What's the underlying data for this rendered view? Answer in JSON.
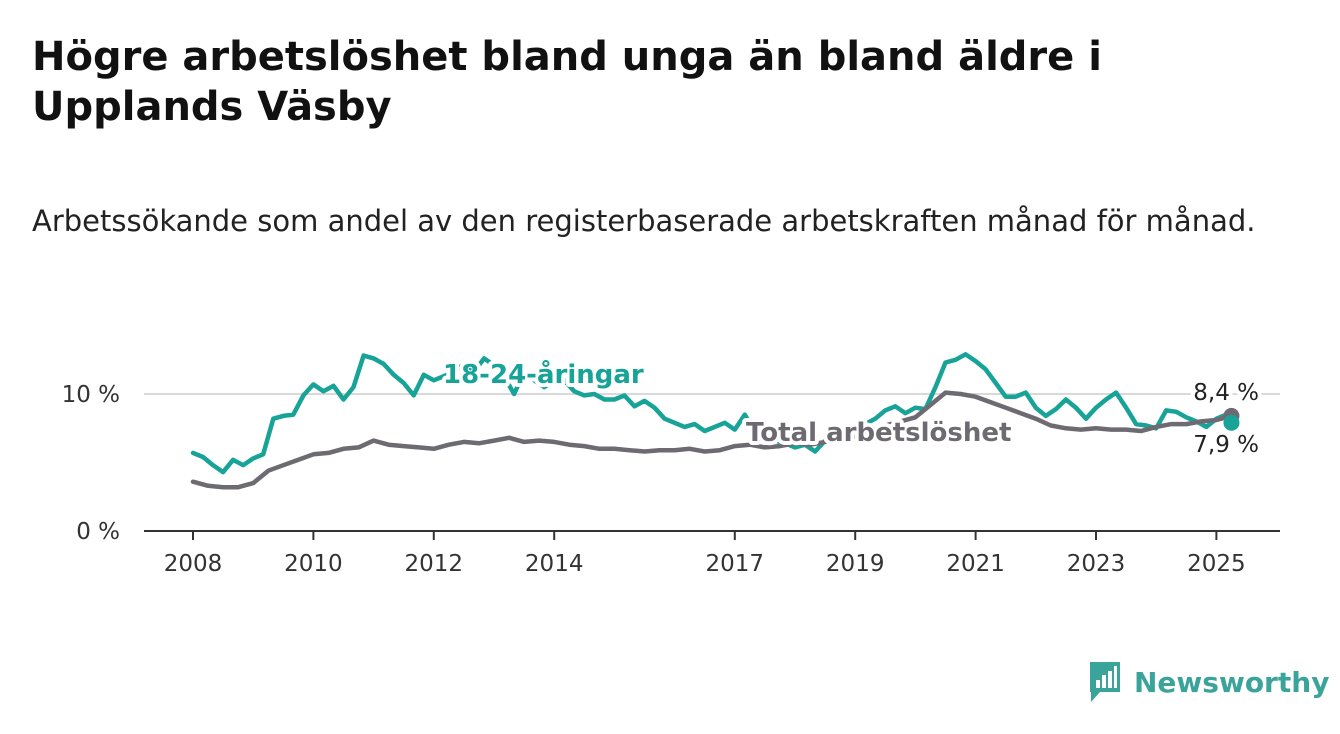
{
  "title": "Högre arbetslöshet bland unga än bland äldre i Upplands Väsby",
  "subtitle": "Arbetssökande som andel av den registerbaserade arbetskraften månad för månad.",
  "brand": {
    "name": "Newsworthy",
    "icon": "newsworthy-logo-icon"
  },
  "colors": {
    "youth": "#17a398",
    "total": "#6e6a72",
    "grid": "#d9d9d9",
    "axis": "#333333"
  },
  "chart_data": {
    "type": "line",
    "title": "Högre arbetslöshet bland unga än bland äldre i Upplands Väsby",
    "subtitle": "Arbetssökande som andel av den registerbaserade arbetskraften månad för månad.",
    "xlim": [
      "2008-01",
      "2025-06"
    ],
    "ylim": [
      0,
      13.5
    ],
    "x_ticks": [
      "2008",
      "2010",
      "2012",
      "2014",
      "2017",
      "2019",
      "2021",
      "2023",
      "2025"
    ],
    "y_ticks": [
      "0 %",
      "10 %"
    ],
    "y_tick_values": [
      0,
      10
    ],
    "grid": "horizontal",
    "series": [
      {
        "name": "18-24-åringar",
        "color": "#17a398",
        "end_label": "7,9 %",
        "points": [
          [
            "2008-01",
            5.7
          ],
          [
            "2008-03",
            5.4
          ],
          [
            "2008-05",
            4.8
          ],
          [
            "2008-07",
            4.3
          ],
          [
            "2008-09",
            5.2
          ],
          [
            "2008-11",
            4.8
          ],
          [
            "2009-01",
            5.3
          ],
          [
            "2009-03",
            5.6
          ],
          [
            "2009-05",
            8.2
          ],
          [
            "2009-07",
            8.4
          ],
          [
            "2009-09",
            8.5
          ],
          [
            "2009-11",
            9.9
          ],
          [
            "2010-01",
            10.7
          ],
          [
            "2010-03",
            10.2
          ],
          [
            "2010-05",
            10.6
          ],
          [
            "2010-07",
            9.6
          ],
          [
            "2010-09",
            10.5
          ],
          [
            "2010-11",
            12.8
          ],
          [
            "2011-01",
            12.6
          ],
          [
            "2011-03",
            12.2
          ],
          [
            "2011-05",
            11.4
          ],
          [
            "2011-07",
            10.8
          ],
          [
            "2011-09",
            9.9
          ],
          [
            "2011-11",
            11.4
          ],
          [
            "2012-01",
            11.0
          ],
          [
            "2012-03",
            11.3
          ],
          [
            "2012-05",
            11.6
          ],
          [
            "2012-07",
            12.2
          ],
          [
            "2012-09",
            11.6
          ],
          [
            "2012-11",
            12.6
          ],
          [
            "2013-01",
            12.1
          ],
          [
            "2013-03",
            11.3
          ],
          [
            "2013-05",
            10.0
          ],
          [
            "2013-07",
            11.6
          ],
          [
            "2013-09",
            11.0
          ],
          [
            "2013-11",
            10.5
          ],
          [
            "2014-01",
            11.0
          ],
          [
            "2014-03",
            11.0
          ],
          [
            "2014-05",
            10.2
          ],
          [
            "2014-07",
            9.9
          ],
          [
            "2014-09",
            10.0
          ],
          [
            "2014-11",
            9.6
          ],
          [
            "2015-01",
            9.6
          ],
          [
            "2015-03",
            9.9
          ],
          [
            "2015-05",
            9.1
          ],
          [
            "2015-07",
            9.5
          ],
          [
            "2015-09",
            9.0
          ],
          [
            "2015-11",
            8.2
          ],
          [
            "2016-01",
            7.9
          ],
          [
            "2016-03",
            7.6
          ],
          [
            "2016-05",
            7.8
          ],
          [
            "2016-07",
            7.3
          ],
          [
            "2016-09",
            7.6
          ],
          [
            "2016-11",
            7.9
          ],
          [
            "2017-01",
            7.4
          ],
          [
            "2017-03",
            8.5
          ],
          [
            "2017-05",
            7.2
          ],
          [
            "2017-07",
            6.6
          ],
          [
            "2017-09",
            6.6
          ],
          [
            "2017-11",
            6.4
          ],
          [
            "2018-01",
            6.1
          ],
          [
            "2018-03",
            6.3
          ],
          [
            "2018-05",
            5.8
          ],
          [
            "2018-07",
            6.6
          ],
          [
            "2018-09",
            6.9
          ],
          [
            "2018-11",
            7.1
          ],
          [
            "2019-01",
            7.3
          ],
          [
            "2019-03",
            7.8
          ],
          [
            "2019-05",
            8.2
          ],
          [
            "2019-07",
            8.8
          ],
          [
            "2019-09",
            9.1
          ],
          [
            "2019-11",
            8.6
          ],
          [
            "2020-01",
            9.0
          ],
          [
            "2020-03",
            8.9
          ],
          [
            "2020-05",
            10.5
          ],
          [
            "2020-07",
            12.3
          ],
          [
            "2020-09",
            12.5
          ],
          [
            "2020-11",
            12.9
          ],
          [
            "2021-01",
            12.4
          ],
          [
            "2021-03",
            11.8
          ],
          [
            "2021-05",
            10.8
          ],
          [
            "2021-07",
            9.8
          ],
          [
            "2021-09",
            9.8
          ],
          [
            "2021-11",
            10.1
          ],
          [
            "2022-01",
            9.0
          ],
          [
            "2022-03",
            8.4
          ],
          [
            "2022-05",
            8.9
          ],
          [
            "2022-07",
            9.6
          ],
          [
            "2022-09",
            9.0
          ],
          [
            "2022-11",
            8.2
          ],
          [
            "2023-01",
            9.0
          ],
          [
            "2023-03",
            9.6
          ],
          [
            "2023-05",
            10.1
          ],
          [
            "2023-07",
            9.0
          ],
          [
            "2023-09",
            7.8
          ],
          [
            "2023-11",
            7.7
          ],
          [
            "2024-01",
            7.5
          ],
          [
            "2024-03",
            8.8
          ],
          [
            "2024-05",
            8.7
          ],
          [
            "2024-07",
            8.3
          ],
          [
            "2024-09",
            8.0
          ],
          [
            "2024-11",
            7.6
          ],
          [
            "2025-01",
            8.2
          ],
          [
            "2025-03",
            8.5
          ],
          [
            "2025-04",
            7.9
          ]
        ]
      },
      {
        "name": "Total arbetslöshet",
        "color": "#6e6a72",
        "end_label": "8,4 %",
        "points": [
          [
            "2008-01",
            3.6
          ],
          [
            "2008-04",
            3.3
          ],
          [
            "2008-07",
            3.2
          ],
          [
            "2008-10",
            3.2
          ],
          [
            "2009-01",
            3.5
          ],
          [
            "2009-04",
            4.4
          ],
          [
            "2009-07",
            4.8
          ],
          [
            "2009-10",
            5.2
          ],
          [
            "2010-01",
            5.6
          ],
          [
            "2010-04",
            5.7
          ],
          [
            "2010-07",
            6.0
          ],
          [
            "2010-10",
            6.1
          ],
          [
            "2011-01",
            6.6
          ],
          [
            "2011-04",
            6.3
          ],
          [
            "2011-07",
            6.2
          ],
          [
            "2011-10",
            6.1
          ],
          [
            "2012-01",
            6.0
          ],
          [
            "2012-04",
            6.3
          ],
          [
            "2012-07",
            6.5
          ],
          [
            "2012-10",
            6.4
          ],
          [
            "2013-01",
            6.6
          ],
          [
            "2013-04",
            6.8
          ],
          [
            "2013-07",
            6.5
          ],
          [
            "2013-10",
            6.6
          ],
          [
            "2014-01",
            6.5
          ],
          [
            "2014-04",
            6.3
          ],
          [
            "2014-07",
            6.2
          ],
          [
            "2014-10",
            6.0
          ],
          [
            "2015-01",
            6.0
          ],
          [
            "2015-04",
            5.9
          ],
          [
            "2015-07",
            5.8
          ],
          [
            "2015-10",
            5.9
          ],
          [
            "2016-01",
            5.9
          ],
          [
            "2016-04",
            6.0
          ],
          [
            "2016-07",
            5.8
          ],
          [
            "2016-10",
            5.9
          ],
          [
            "2017-01",
            6.2
          ],
          [
            "2017-04",
            6.3
          ],
          [
            "2017-07",
            6.1
          ],
          [
            "2017-10",
            6.2
          ],
          [
            "2018-01",
            6.4
          ],
          [
            "2018-04",
            6.3
          ],
          [
            "2018-07",
            6.5
          ],
          [
            "2018-10",
            6.6
          ],
          [
            "2019-01",
            6.9
          ],
          [
            "2019-04",
            7.3
          ],
          [
            "2019-07",
            7.7
          ],
          [
            "2019-10",
            8.0
          ],
          [
            "2020-01",
            8.3
          ],
          [
            "2020-04",
            9.2
          ],
          [
            "2020-07",
            10.1
          ],
          [
            "2020-10",
            10.0
          ],
          [
            "2021-01",
            9.8
          ],
          [
            "2021-04",
            9.4
          ],
          [
            "2021-07",
            9.0
          ],
          [
            "2021-10",
            8.6
          ],
          [
            "2022-01",
            8.2
          ],
          [
            "2022-04",
            7.7
          ],
          [
            "2022-07",
            7.5
          ],
          [
            "2022-10",
            7.4
          ],
          [
            "2023-01",
            7.5
          ],
          [
            "2023-04",
            7.4
          ],
          [
            "2023-07",
            7.4
          ],
          [
            "2023-10",
            7.3
          ],
          [
            "2024-01",
            7.6
          ],
          [
            "2024-04",
            7.8
          ],
          [
            "2024-07",
            7.8
          ],
          [
            "2024-10",
            8.0
          ],
          [
            "2025-01",
            8.1
          ],
          [
            "2025-04",
            8.4
          ]
        ]
      }
    ]
  }
}
